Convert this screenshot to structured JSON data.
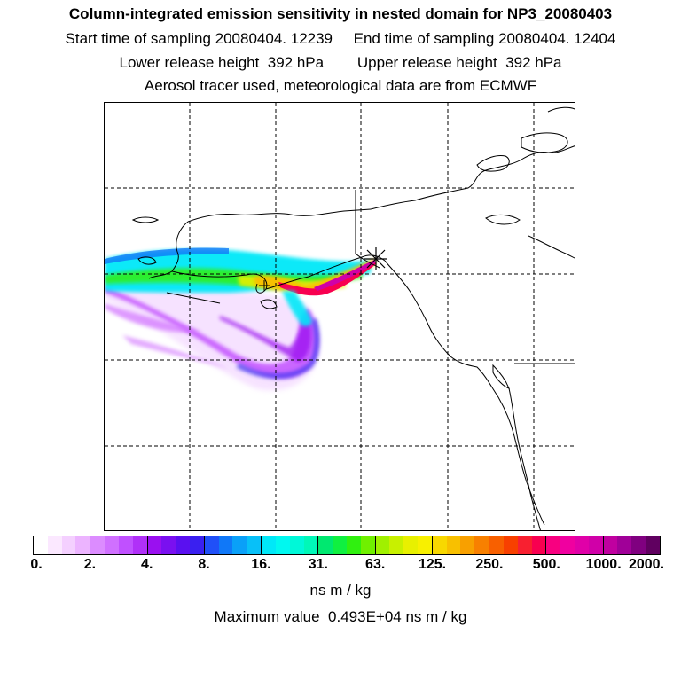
{
  "header": {
    "title": "Column-integrated emission sensitivity in nested domain for NP3_20080403",
    "sampling_line": "Start time of sampling 20080404. 12239     End time of sampling 20080404. 12404",
    "release_line": "Lower release height  392 hPa        Upper release height  392 hPa",
    "tracer_line": "Aerosol tracer used, meteorological data are from ECMWF"
  },
  "colorbar": {
    "tick_labels": [
      "0.",
      "2.",
      "4.",
      "8.",
      "16.",
      "31.",
      "63.",
      "125.",
      "250.",
      "500.",
      "1000.",
      "2000."
    ],
    "segments": [
      [
        "#ffffff",
        "#fbe8ff",
        "#f4d0ff",
        "#ecb4ff"
      ],
      [
        "#dc8cff",
        "#d070ff",
        "#c050ff",
        "#b030f8"
      ],
      [
        "#9a10f0",
        "#7a10f0",
        "#5a10f0",
        "#3a20f0"
      ],
      [
        "#2050f8",
        "#1078f8",
        "#0aa0f8",
        "#08c0f8"
      ],
      [
        "#00e8f8",
        "#00f8f0",
        "#00f8d8",
        "#00f8b8"
      ],
      [
        "#00e870",
        "#10f040",
        "#30f010",
        "#70f000"
      ],
      [
        "#a0f000",
        "#c8f000",
        "#e8f000",
        "#f8f000"
      ],
      [
        "#f8d800",
        "#f8c000",
        "#f8a000",
        "#f88000"
      ],
      [
        "#f86000",
        "#f84000",
        "#f82030",
        "#f80050"
      ],
      [
        "#f80080",
        "#f000a0",
        "#e000a8",
        "#d000a8"
      ],
      [
        "#c000a0",
        "#a00098",
        "#800080",
        "#600060"
      ]
    ]
  },
  "units_label": "ns m / kg",
  "max_value_line": "Maximum value  0.493E+04 ns m / kg"
}
